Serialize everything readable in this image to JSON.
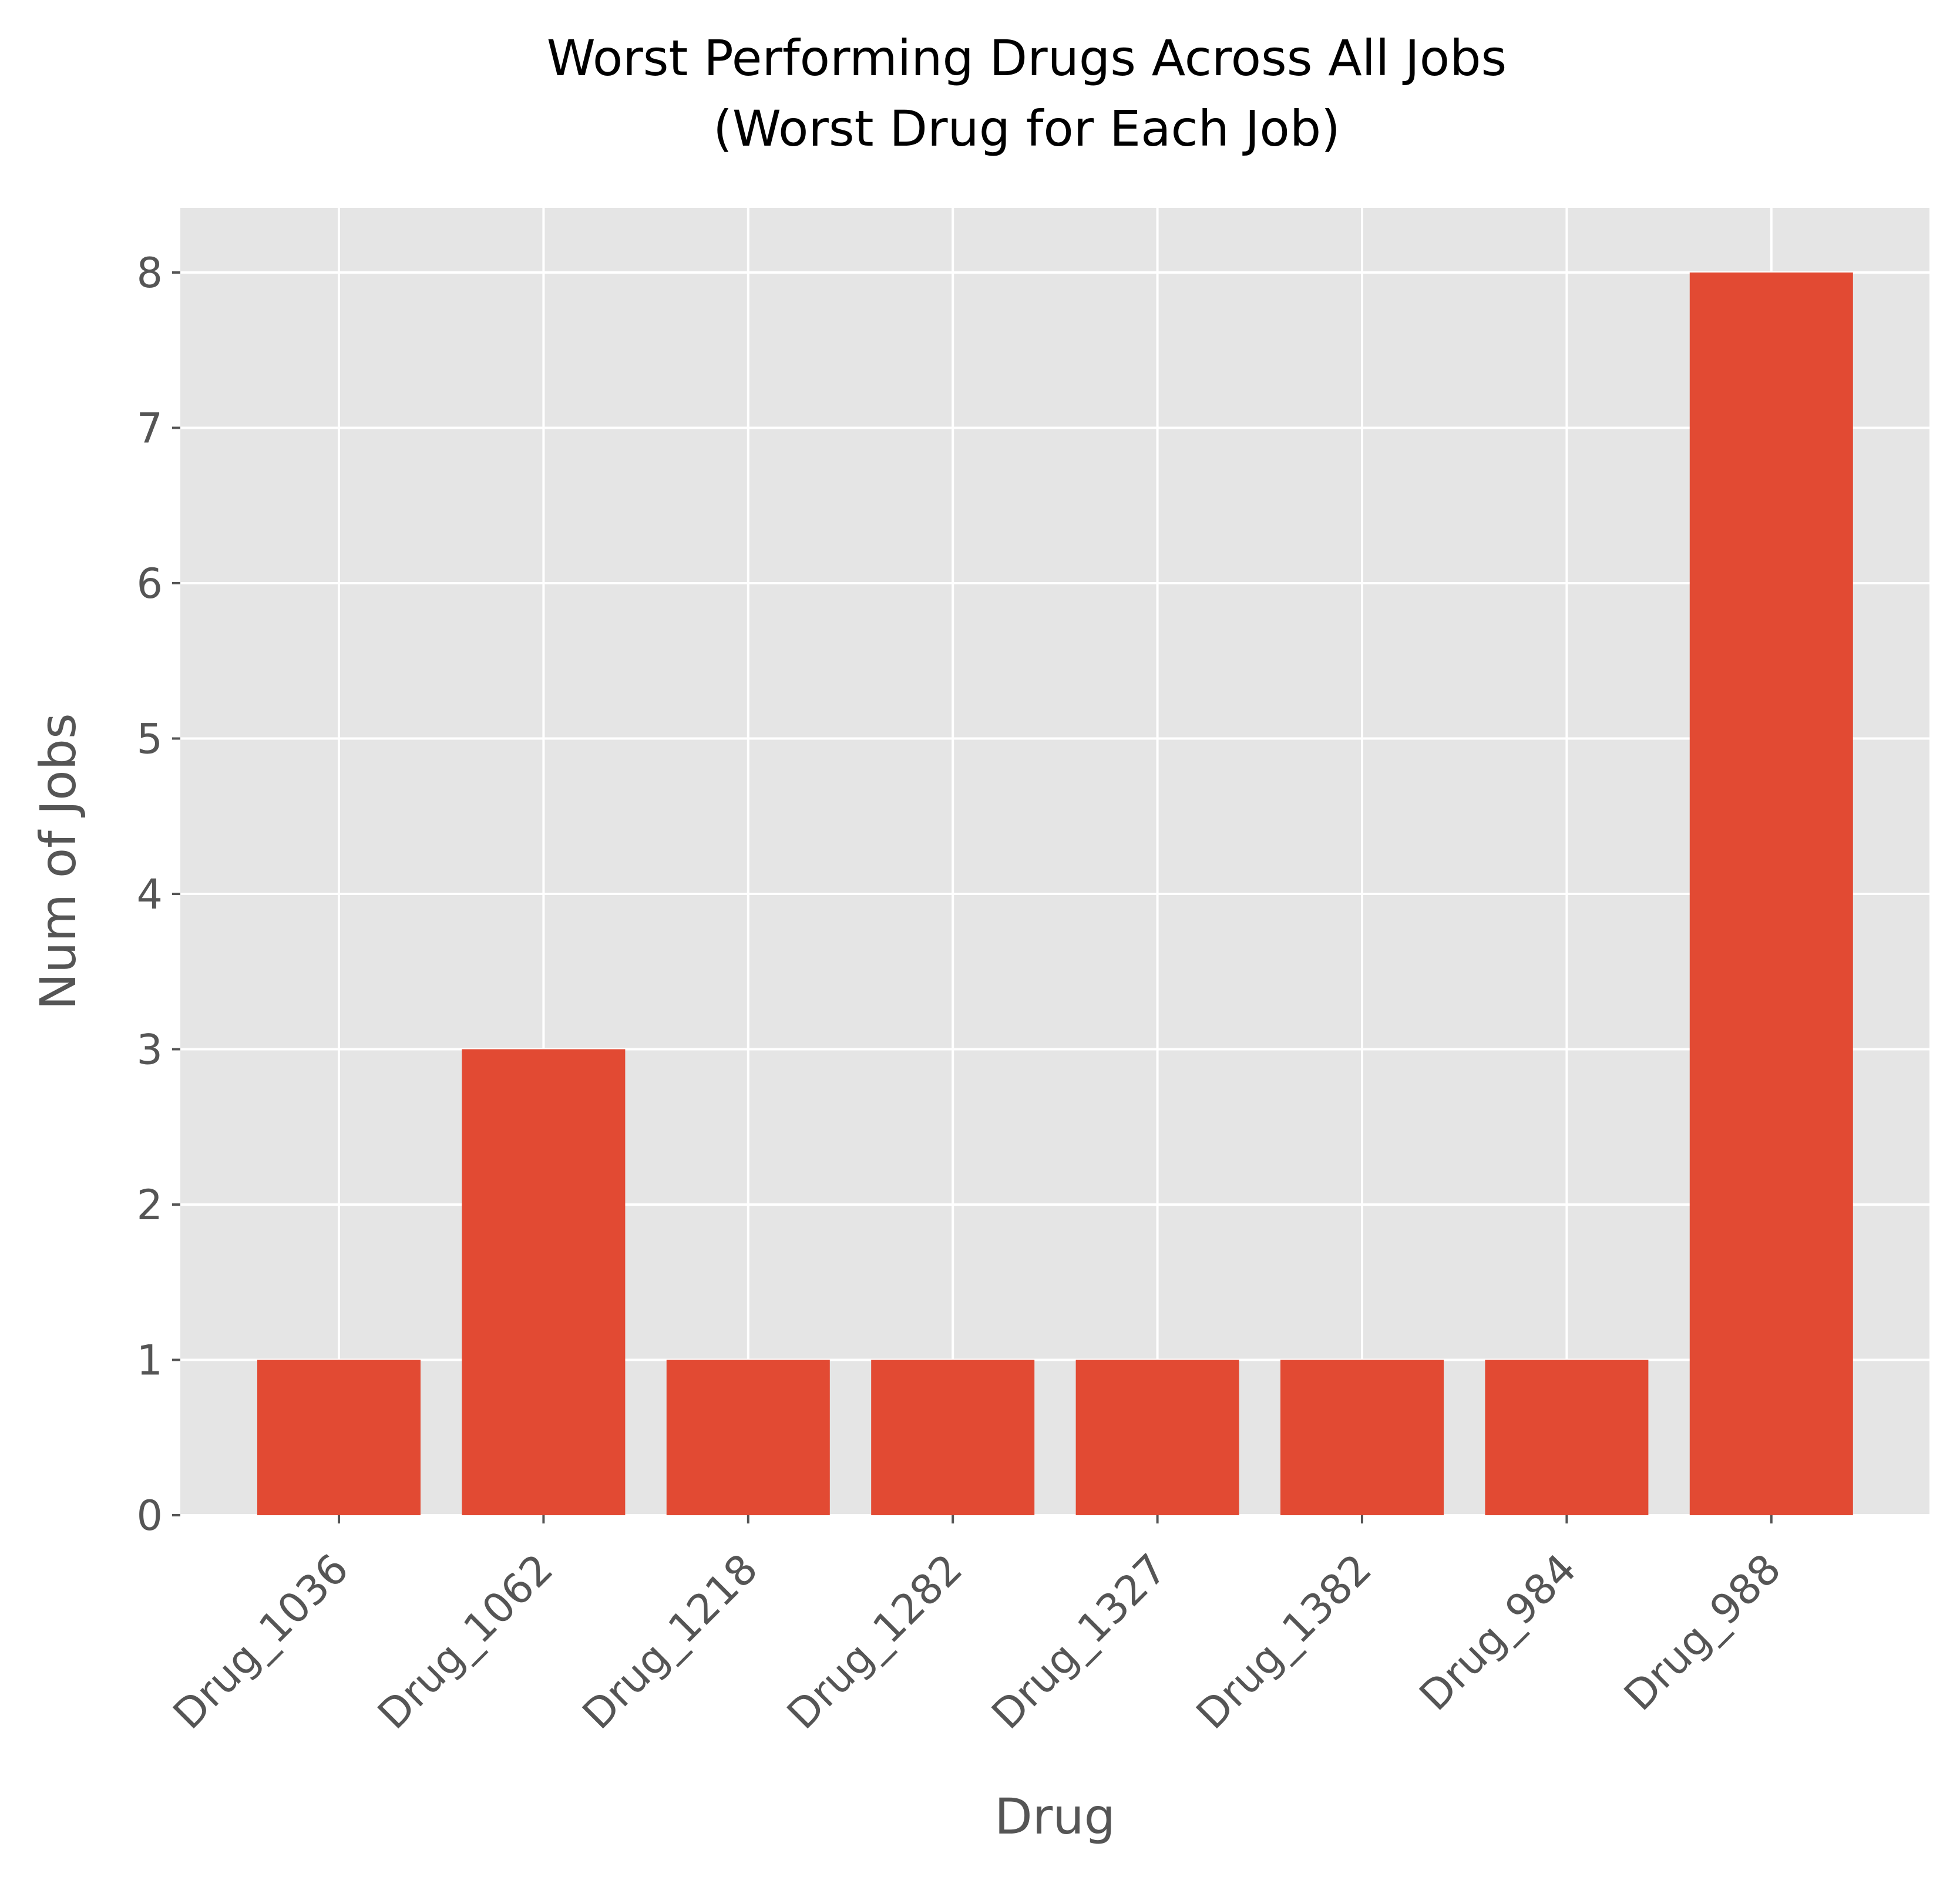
{
  "chart_data": {
    "type": "bar",
    "title": "Worst Performing Drugs Across All Jobs",
    "subtitle": "(Worst Drug for Each Job)",
    "xlabel": "Drug",
    "ylabel": "Num of Jobs",
    "categories": [
      "Drug_1036",
      "Drug_1062",
      "Drug_1218",
      "Drug_1282",
      "Drug_1327",
      "Drug_1382",
      "Drug_984",
      "Drug_988"
    ],
    "values": [
      1,
      3,
      1,
      1,
      1,
      1,
      1,
      8
    ],
    "ylim": [
      0,
      8.4
    ],
    "yticks": [
      0,
      1,
      2,
      3,
      4,
      5,
      6,
      7,
      8
    ],
    "grid": true,
    "legend": "none",
    "colors": {
      "bar": "#E24A33",
      "plot_background": "#E5E5E5",
      "grid": "#FFFFFF",
      "text": "#555555",
      "title": "#000000"
    }
  }
}
